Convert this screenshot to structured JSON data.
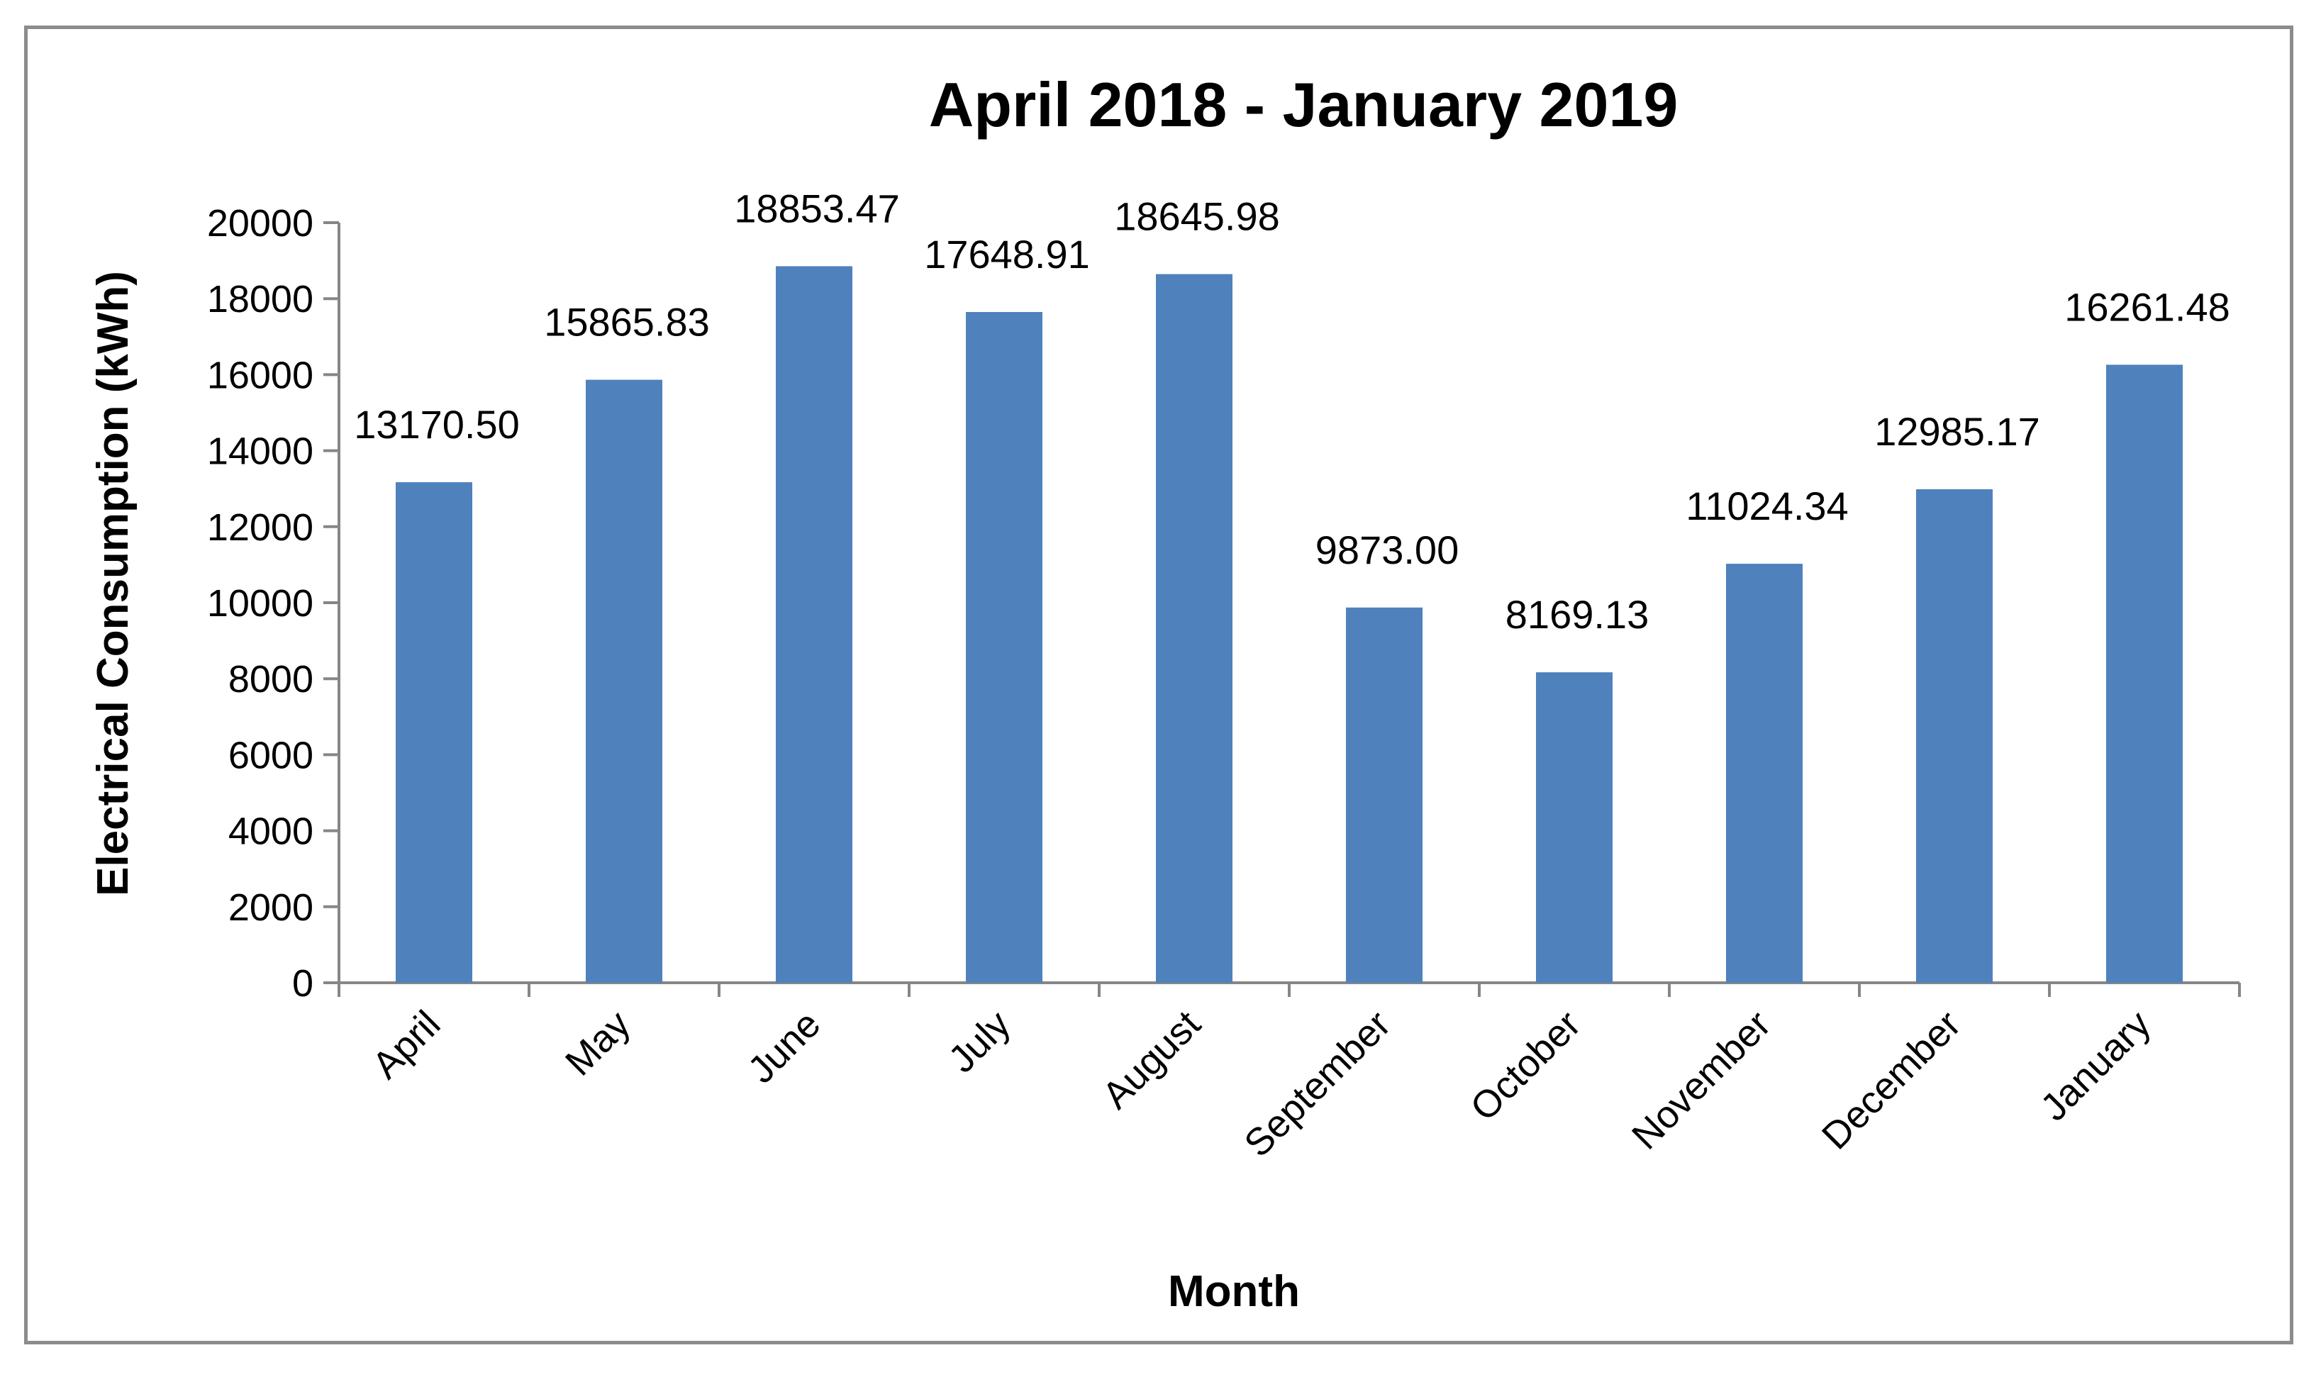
{
  "chart_data": {
    "type": "bar",
    "title": "April 2018 - January 2019",
    "xlabel": "Month",
    "ylabel": "Electrical Consumption (kWh)",
    "categories": [
      "April",
      "May",
      "June",
      "July",
      "August",
      "September",
      "October",
      "November",
      "December",
      "January"
    ],
    "values": [
      13170.5,
      15865.83,
      18853.47,
      17648.91,
      18645.98,
      9873.0,
      8169.13,
      11024.34,
      12985.17,
      16261.48
    ],
    "data_labels": [
      "13170.50",
      "15865.83",
      "18853.47",
      "17648.91",
      "18645.98",
      "9873.00",
      "8169.13",
      "11024.34",
      "12985.17",
      "16261.48"
    ],
    "ylim": [
      0,
      20000
    ],
    "yticks": [
      0,
      2000,
      4000,
      6000,
      8000,
      10000,
      12000,
      14000,
      16000,
      18000,
      20000
    ],
    "grid": false,
    "legend": "none",
    "bar_color": "#4f81bd",
    "axis_color": "#868686",
    "frame_color": "#8c8c8c"
  }
}
